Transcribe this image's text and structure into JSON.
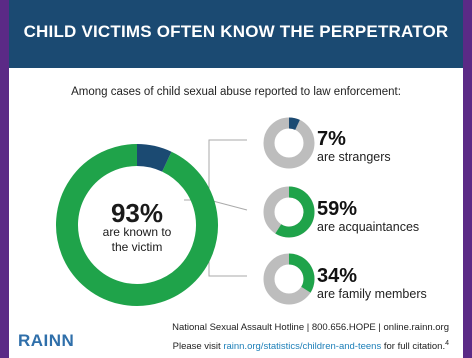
{
  "header": {
    "title": "CHILD VICTIMS OFTEN KNOW THE PERPETRATOR"
  },
  "subtitle": "Among cases of child sexual abuse reported to law enforcement:",
  "colors": {
    "green": "#1fa34a",
    "navy": "#1b4a72",
    "gray": "#bdbdbd",
    "border": "#5b2a86"
  },
  "chart_data": [
    {
      "type": "pie",
      "categories": [
        "known to the victim",
        "strangers"
      ],
      "values": [
        93,
        7
      ],
      "center_pct": "93%",
      "center_label": [
        "are known to",
        "the victim"
      ]
    },
    {
      "type": "pie",
      "items": [
        {
          "pct": "7%",
          "value": 7,
          "label": "are strangers",
          "color": "navy"
        },
        {
          "pct": "59%",
          "value": 59,
          "label": "are acquaintances",
          "color": "green"
        },
        {
          "pct": "34%",
          "value": 34,
          "label": "are family members",
          "color": "green"
        }
      ]
    }
  ],
  "footer": {
    "line1": "National Sexual Assault Hotline | 800.656.HOPE | online.rainn.org",
    "line2_pre": "Please visit ",
    "line2_link": "rainn.org/statistics/children-and-teens",
    "line2_post": " for full citation.",
    "line2_sup": "4"
  },
  "logo": "RAINN"
}
